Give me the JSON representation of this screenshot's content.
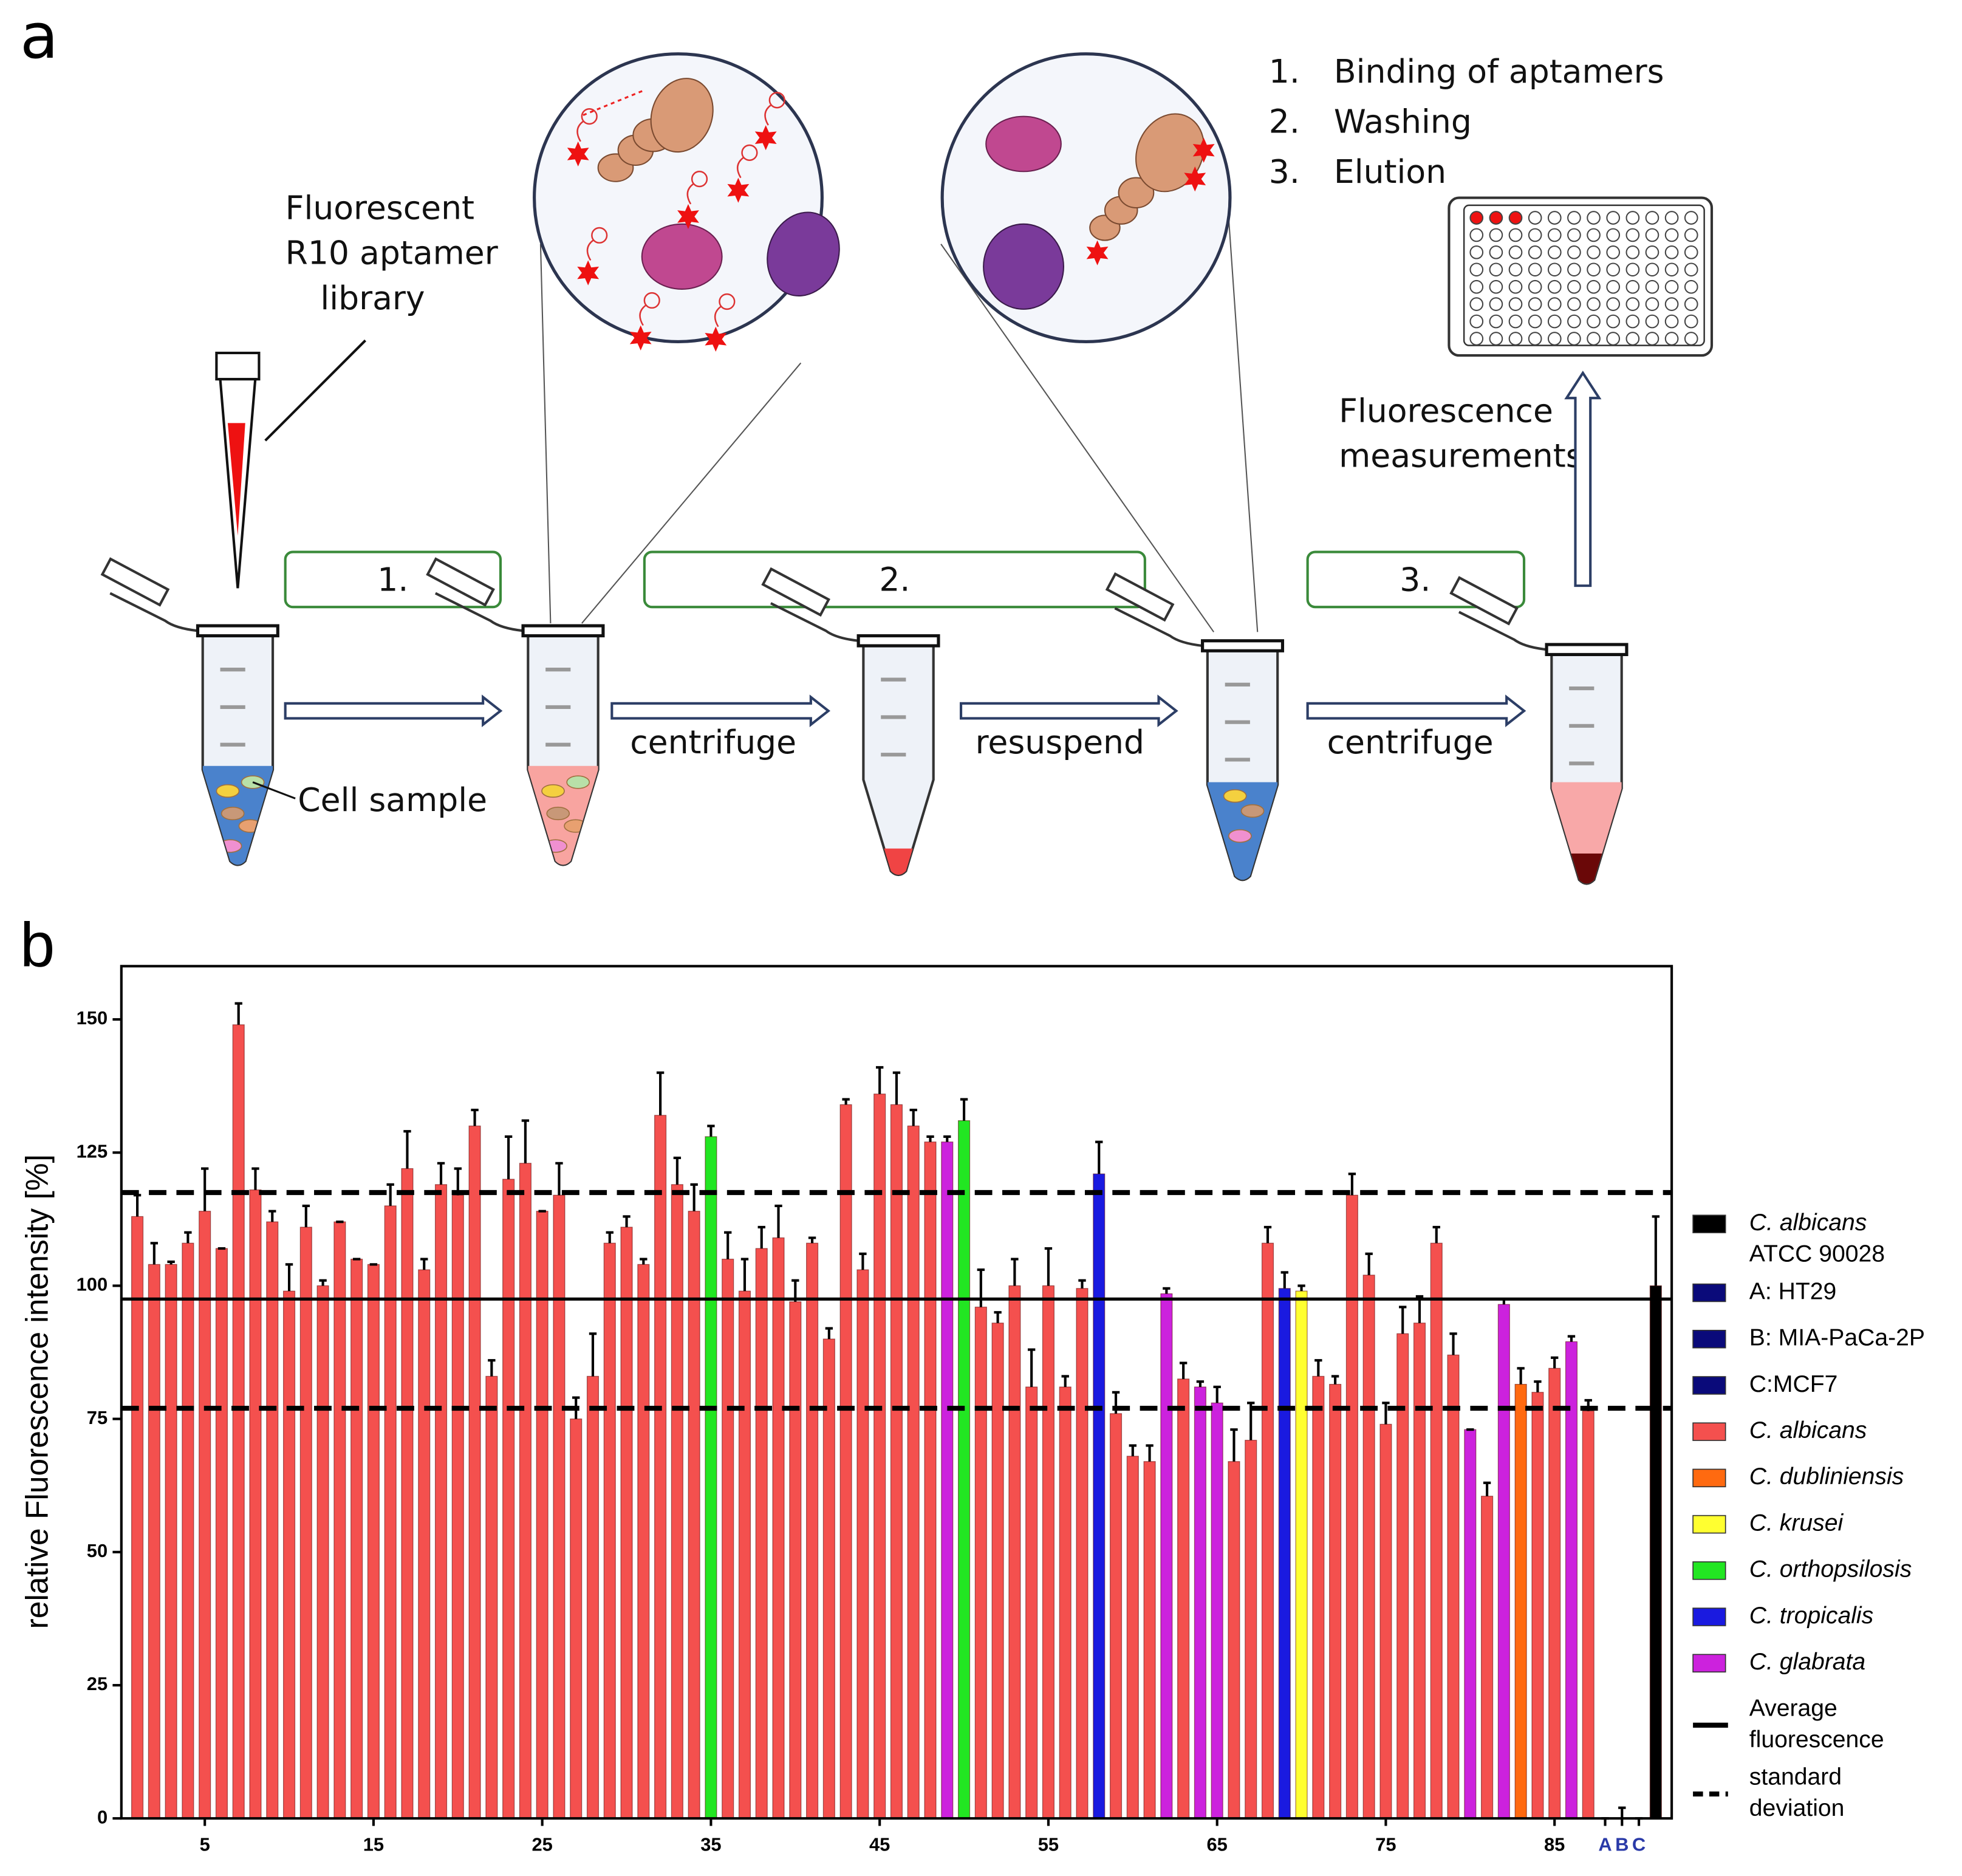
{
  "figure": {
    "panel_labels": [
      "a",
      "b"
    ],
    "library_label": [
      "Fluorescent",
      "R10 aptamer",
      "library"
    ],
    "step_boxes": [
      "1.",
      "2.",
      "3."
    ],
    "actions": [
      "centrifuge",
      "resuspend",
      "centrifuge"
    ],
    "cell_sample_label": "Cell sample",
    "step_list": [
      {
        "number": "1.",
        "text": "Binding of aptamers"
      },
      {
        "number": "2.",
        "text": "Washing"
      },
      {
        "number": "3.",
        "text": "Elution"
      }
    ],
    "measurement_label": [
      "Fluorescence",
      "measurements"
    ]
  },
  "chart_data": {
    "type": "bar",
    "ylabel": "relative Fluorescence intensity [%]",
    "categories": [
      null,
      null,
      null,
      null,
      "5",
      null,
      null,
      null,
      null,
      null,
      null,
      null,
      null,
      null,
      "15",
      null,
      null,
      null,
      null,
      null,
      null,
      null,
      null,
      null,
      "25",
      null,
      null,
      null,
      null,
      null,
      null,
      null,
      null,
      null,
      "35",
      null,
      null,
      null,
      null,
      null,
      null,
      null,
      null,
      null,
      "45",
      null,
      null,
      null,
      null,
      null,
      null,
      null,
      null,
      null,
      "55",
      null,
      null,
      null,
      null,
      null,
      null,
      null,
      null,
      null,
      "65",
      null,
      null,
      null,
      null,
      null,
      null,
      null,
      null,
      null,
      "75",
      null,
      null,
      null,
      null,
      null,
      null,
      null,
      null,
      null,
      "85",
      null,
      null,
      "A",
      "B",
      "C",
      null
    ],
    "values": [
      113,
      104,
      104,
      108,
      114,
      107,
      149,
      118,
      112,
      99,
      111,
      100,
      112,
      105,
      104,
      115,
      122,
      103,
      119,
      117,
      130,
      83,
      120,
      123,
      114,
      117,
      75,
      83,
      108,
      111,
      104,
      132,
      119,
      114,
      128,
      105,
      99,
      107,
      109,
      97,
      108,
      90,
      134,
      103,
      136,
      134,
      130,
      127,
      127,
      131,
      96,
      93,
      100,
      81,
      100,
      81,
      99.5,
      121,
      76,
      68,
      67,
      98.5,
      82.5,
      81,
      78,
      67,
      71,
      108,
      99.5,
      99,
      83,
      81.5,
      117,
      102,
      74,
      91,
      93,
      108,
      87,
      73,
      60.5,
      96.5,
      81.5,
      80,
      84.5,
      89.5,
      76.5,
      0,
      0,
      0,
      100
    ],
    "errors": [
      4,
      4,
      0.5,
      2,
      8,
      0,
      4,
      4,
      2,
      5,
      4,
      1,
      0,
      0,
      0,
      4,
      7,
      2,
      4,
      5,
      3,
      3,
      8,
      8,
      0,
      6,
      4,
      8,
      2,
      2,
      1,
      8,
      5,
      5,
      2,
      5,
      6,
      4,
      6,
      4,
      1,
      2,
      1,
      3,
      5,
      6,
      3,
      1,
      1,
      4,
      7,
      2,
      5,
      7,
      7,
      2,
      1.5,
      6,
      4,
      2,
      3,
      1,
      3,
      1,
      3,
      6,
      7,
      3,
      3,
      1,
      3,
      1.5,
      4,
      4,
      4,
      5,
      5,
      3,
      4,
      0,
      2.5,
      1,
      3,
      2,
      2,
      1,
      2,
      0,
      2,
      0,
      13
    ],
    "colors": [
      "#f4504e",
      "#f4504e",
      "#f4504e",
      "#f4504e",
      "#f4504e",
      "#f4504e",
      "#f4504e",
      "#f4504e",
      "#f4504e",
      "#f4504e",
      "#f4504e",
      "#f4504e",
      "#f4504e",
      "#f4504e",
      "#f4504e",
      "#f4504e",
      "#f4504e",
      "#f4504e",
      "#f4504e",
      "#f4504e",
      "#f4504e",
      "#f4504e",
      "#f4504e",
      "#f4504e",
      "#f4504e",
      "#f4504e",
      "#f4504e",
      "#f4504e",
      "#f4504e",
      "#f4504e",
      "#f4504e",
      "#f4504e",
      "#f4504e",
      "#f4504e",
      "#22e622",
      "#f4504e",
      "#f4504e",
      "#f4504e",
      "#f4504e",
      "#f4504e",
      "#f4504e",
      "#f4504e",
      "#f4504e",
      "#f4504e",
      "#f4504e",
      "#f4504e",
      "#f4504e",
      "#f4504e",
      "#cc22dd",
      "#22e622",
      "#f4504e",
      "#f4504e",
      "#f4504e",
      "#f4504e",
      "#f4504e",
      "#f4504e",
      "#f4504e",
      "#1a1ae0",
      "#f4504e",
      "#f4504e",
      "#f4504e",
      "#cc22dd",
      "#f4504e",
      "#cc22dd",
      "#cc22dd",
      "#f4504e",
      "#f4504e",
      "#f4504e",
      "#1a1ae0",
      "#ffff30",
      "#f4504e",
      "#f4504e",
      "#f4504e",
      "#f4504e",
      "#f4504e",
      "#f4504e",
      "#f4504e",
      "#f4504e",
      "#f4504e",
      "#cc22dd",
      "#f4504e",
      "#cc22dd",
      "#ff6a10",
      "#f4504e",
      "#f4504e",
      "#cc22dd",
      "#f4504e",
      "#0a0a7a",
      "#0a0a7a",
      "#0a0a7a",
      "#000000"
    ],
    "ylim": [
      0,
      160
    ],
    "yticks": [
      0,
      25,
      50,
      75,
      100,
      125,
      150
    ],
    "reference_lines": [
      {
        "value": 97.5,
        "style": "solid"
      },
      {
        "value": 117.5,
        "style": "dashed"
      },
      {
        "value": 77,
        "style": "dashed"
      }
    ],
    "legend": [
      {
        "lines": [
          "C. albicans",
          "ATCC 90028"
        ],
        "italic": true,
        "marker": "box",
        "color": "#000000"
      },
      {
        "lines": [
          "A: HT29"
        ],
        "italic": false,
        "marker": "box",
        "color": "#0a0a7a"
      },
      {
        "lines": [
          "B: MIA-PaCa-2P"
        ],
        "italic": false,
        "marker": "box",
        "color": "#0a0a7a"
      },
      {
        "lines": [
          "C:MCF7"
        ],
        "italic": false,
        "marker": "box",
        "color": "#0a0a7a"
      },
      {
        "lines": [
          "C. albicans"
        ],
        "italic": true,
        "marker": "box",
        "color": "#f4504e"
      },
      {
        "lines": [
          "C. dubliniensis"
        ],
        "italic": true,
        "marker": "box",
        "color": "#ff6a10"
      },
      {
        "lines": [
          "C. krusei"
        ],
        "italic": true,
        "marker": "box",
        "color": "#ffff30"
      },
      {
        "lines": [
          "C. orthopsilosis"
        ],
        "italic": true,
        "marker": "box",
        "color": "#22e622"
      },
      {
        "lines": [
          "C. tropicalis"
        ],
        "italic": true,
        "marker": "box",
        "color": "#1a1ae0"
      },
      {
        "lines": [
          "C. glabrata"
        ],
        "italic": true,
        "marker": "box",
        "color": "#cc22dd"
      },
      {
        "lines": [
          "Average",
          "fluorescence"
        ],
        "italic": false,
        "marker": "line",
        "color": "#000000"
      },
      {
        "lines": [
          "standard",
          "deviation"
        ],
        "italic": false,
        "marker": "dashed",
        "color": "#000000"
      }
    ]
  }
}
